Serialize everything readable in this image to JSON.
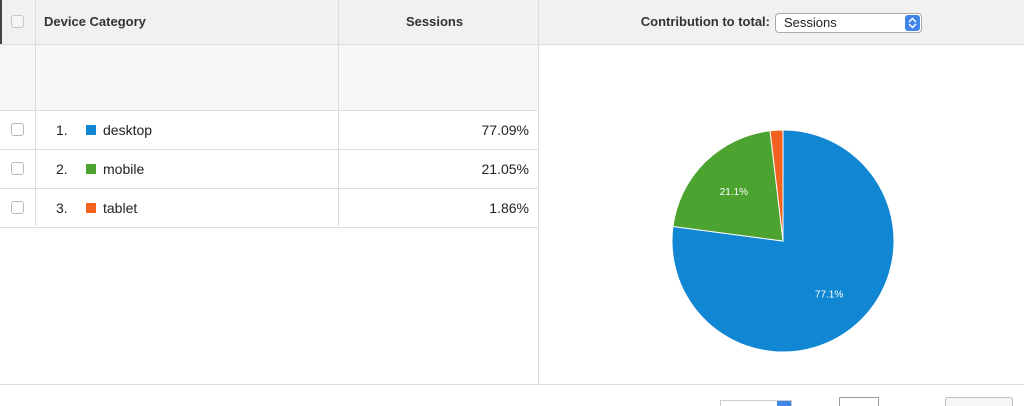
{
  "table": {
    "headers": {
      "device_category": "Device Category",
      "sessions": "Sessions"
    },
    "rows": [
      {
        "rank": "1.",
        "label": "desktop",
        "value": "77.09%",
        "color": "#1187d3"
      },
      {
        "rank": "2.",
        "label": "mobile",
        "value": "21.05%",
        "color": "#4ca32f"
      },
      {
        "rank": "3.",
        "label": "tablet",
        "value": "1.86%",
        "color": "#f4621f"
      }
    ]
  },
  "contribution": {
    "label": "Contribution to total:",
    "selected": "Sessions"
  },
  "chart_data": {
    "type": "pie",
    "categories": [
      "desktop",
      "mobile",
      "tablet"
    ],
    "values": [
      77.09,
      21.05,
      1.86
    ],
    "data_labels": [
      "77.1%",
      "21.1%",
      ""
    ],
    "colors": [
      "#1187d3",
      "#4ca32f",
      "#f4621f"
    ]
  }
}
